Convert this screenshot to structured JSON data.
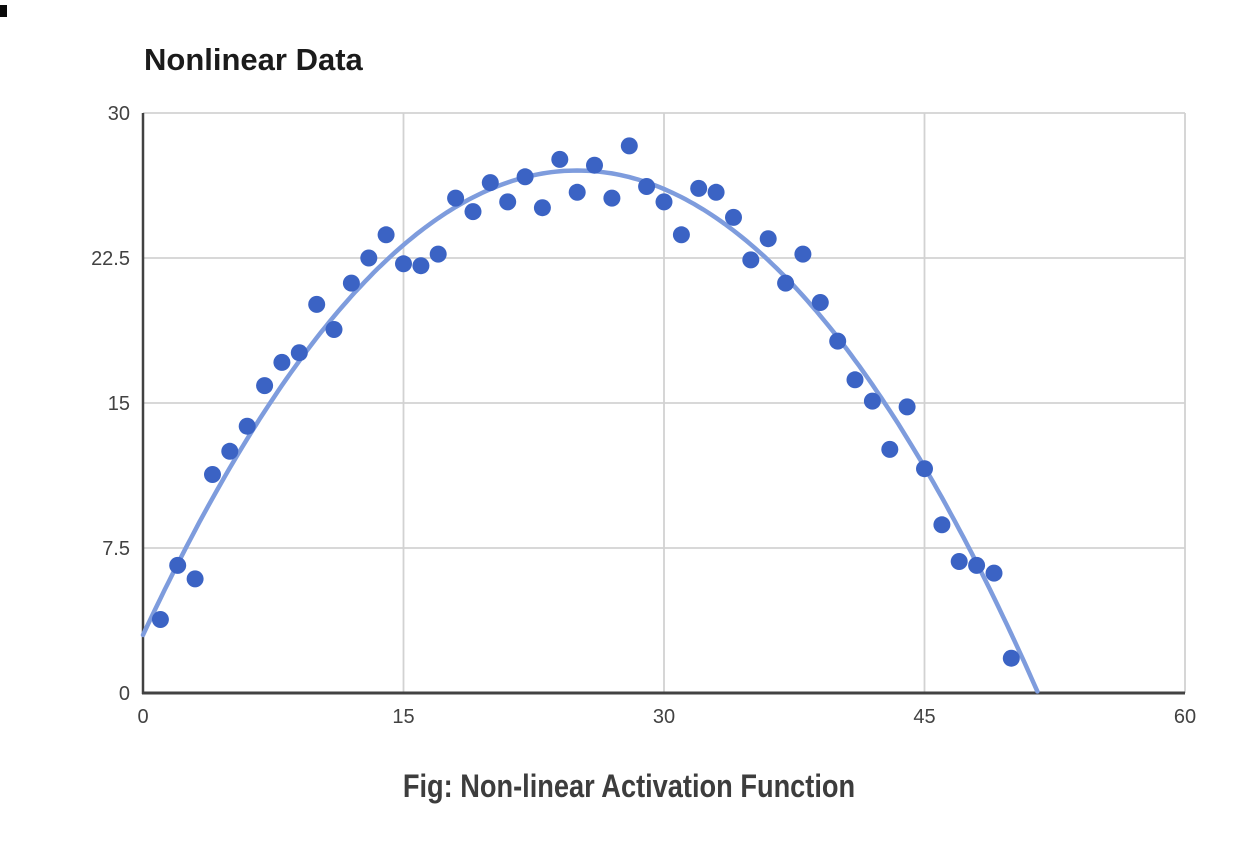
{
  "page": {
    "background": "#ffffff"
  },
  "caption": {
    "text": "Fig: Non-linear Activation Function"
  },
  "chart_data": {
    "type": "scatter",
    "title": "Nonlinear Data",
    "xlabel": "",
    "ylabel": "",
    "xlim": [
      0,
      60
    ],
    "ylim": [
      0,
      30
    ],
    "x_ticks": [
      0,
      15,
      30,
      45,
      60
    ],
    "y_ticks": [
      0,
      7.5,
      15,
      22.5,
      30
    ],
    "x_tick_labels": [
      "0",
      "15",
      "30",
      "45",
      "60"
    ],
    "y_tick_labels": [
      "0",
      "7.5",
      "15",
      "22.5",
      "30"
    ],
    "grid": true,
    "legend": "none",
    "series": [
      {
        "name": "Nonlinear Data",
        "x": [
          1,
          2,
          3,
          4,
          5,
          6,
          7,
          8,
          9,
          10,
          11,
          12,
          13,
          14,
          15,
          16,
          17,
          18,
          19,
          20,
          21,
          22,
          23,
          24,
          25,
          26,
          27,
          28,
          29,
          30,
          31,
          32,
          33,
          34,
          35,
          36,
          37,
          38,
          39,
          40,
          41,
          42,
          43,
          44,
          45,
          46,
          47,
          48,
          49,
          50
        ],
        "y": [
          3.8,
          6.6,
          5.9,
          11.3,
          12.5,
          13.8,
          15.9,
          17.1,
          17.6,
          20.1,
          18.8,
          21.2,
          22.5,
          23.7,
          22.2,
          22.1,
          22.7,
          25.6,
          24.9,
          26.4,
          25.4,
          26.7,
          25.1,
          27.6,
          25.9,
          27.3,
          25.6,
          28.3,
          26.2,
          25.4,
          23.7,
          26.1,
          25.9,
          24.6,
          22.4,
          23.5,
          21.2,
          22.7,
          20.2,
          18.2,
          16.2,
          15.1,
          12.6,
          14.8,
          11.6,
          8.7,
          6.8,
          6.6,
          6.2,
          1.8
        ]
      }
    ],
    "trendline": {
      "type": "quadratic",
      "a": -0.0384,
      "b": 1.921,
      "c": 3.0,
      "x_start": 0,
      "x_end": 51.55
    },
    "colors": {
      "point": "#3b63c4",
      "trendline": "#7e9cdd",
      "gridline": "#d2d2d2",
      "axis": "#424242",
      "tick_label": "#424242",
      "title": "#1b1b1b",
      "caption": "#3d3d3d"
    }
  }
}
